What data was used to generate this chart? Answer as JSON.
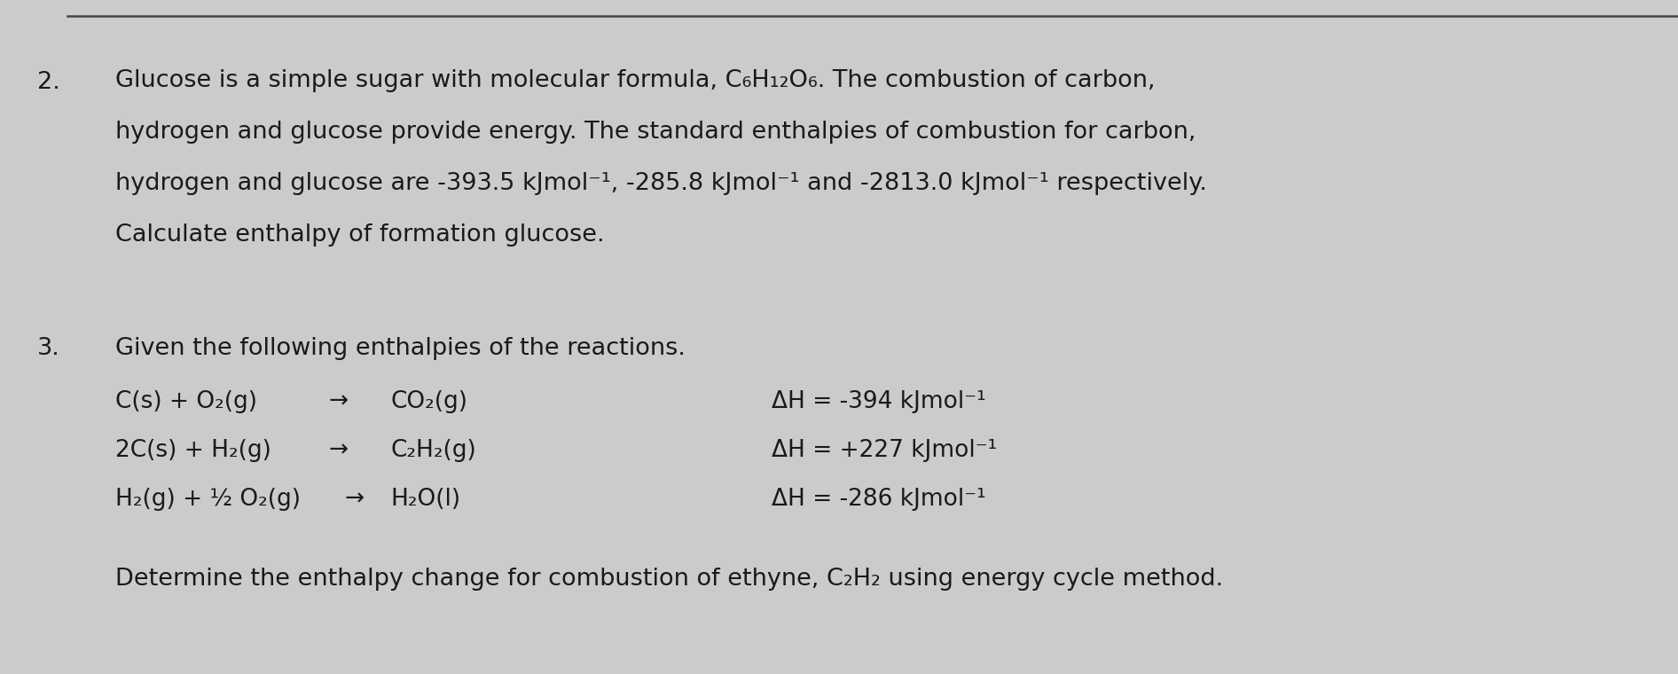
{
  "bg_color": "#cccaca",
  "top_line_color": "#444444",
  "text_color": "#1a1a1a",
  "fig_width": 18.92,
  "fig_height": 7.6,
  "dpi": 100,
  "num2": "2.",
  "num3": "3.",
  "q2_line1": "Glucose is a simple sugar with molecular formula, C₆H₁₂O₆. The combustion of carbon,",
  "q2_line2": "hydrogen and glucose provide energy. The standard enthalpies of combustion for carbon,",
  "q2_line3": "hydrogen and glucose are -393.5 kJmol⁻¹, -285.8 kJmol⁻¹ and -2813.0 kJmol⁻¹ respectively.",
  "q2_line4": "Calculate enthalpy of formation glucose.",
  "q3_intro": "Given the following enthalpies of the reactions.",
  "rxn1_lhs": "C(s) + O₂(g)",
  "rxn1_arrow": "→",
  "rxn1_rhs": "CO₂(g)",
  "rxn1_dH": "ΔH = -394 kJmol⁻¹",
  "rxn2_lhs": "2C(s) + H₂(g)",
  "rxn2_arrow": "→",
  "rxn2_rhs": "C₂H₂(g)",
  "rxn2_dH": "ΔH = +227 kJmol⁻¹",
  "rxn3_lhs": "H₂(g) + ½ O₂(g)",
  "rxn3_arrow": "→",
  "rxn3_rhs": "H₂O(l)",
  "rxn3_dH": "ΔH = -286 kJmol⁻¹",
  "q3_final": "Determine the enthalpy change for combustion of ethyne, C₂H₂ using energy cycle method."
}
